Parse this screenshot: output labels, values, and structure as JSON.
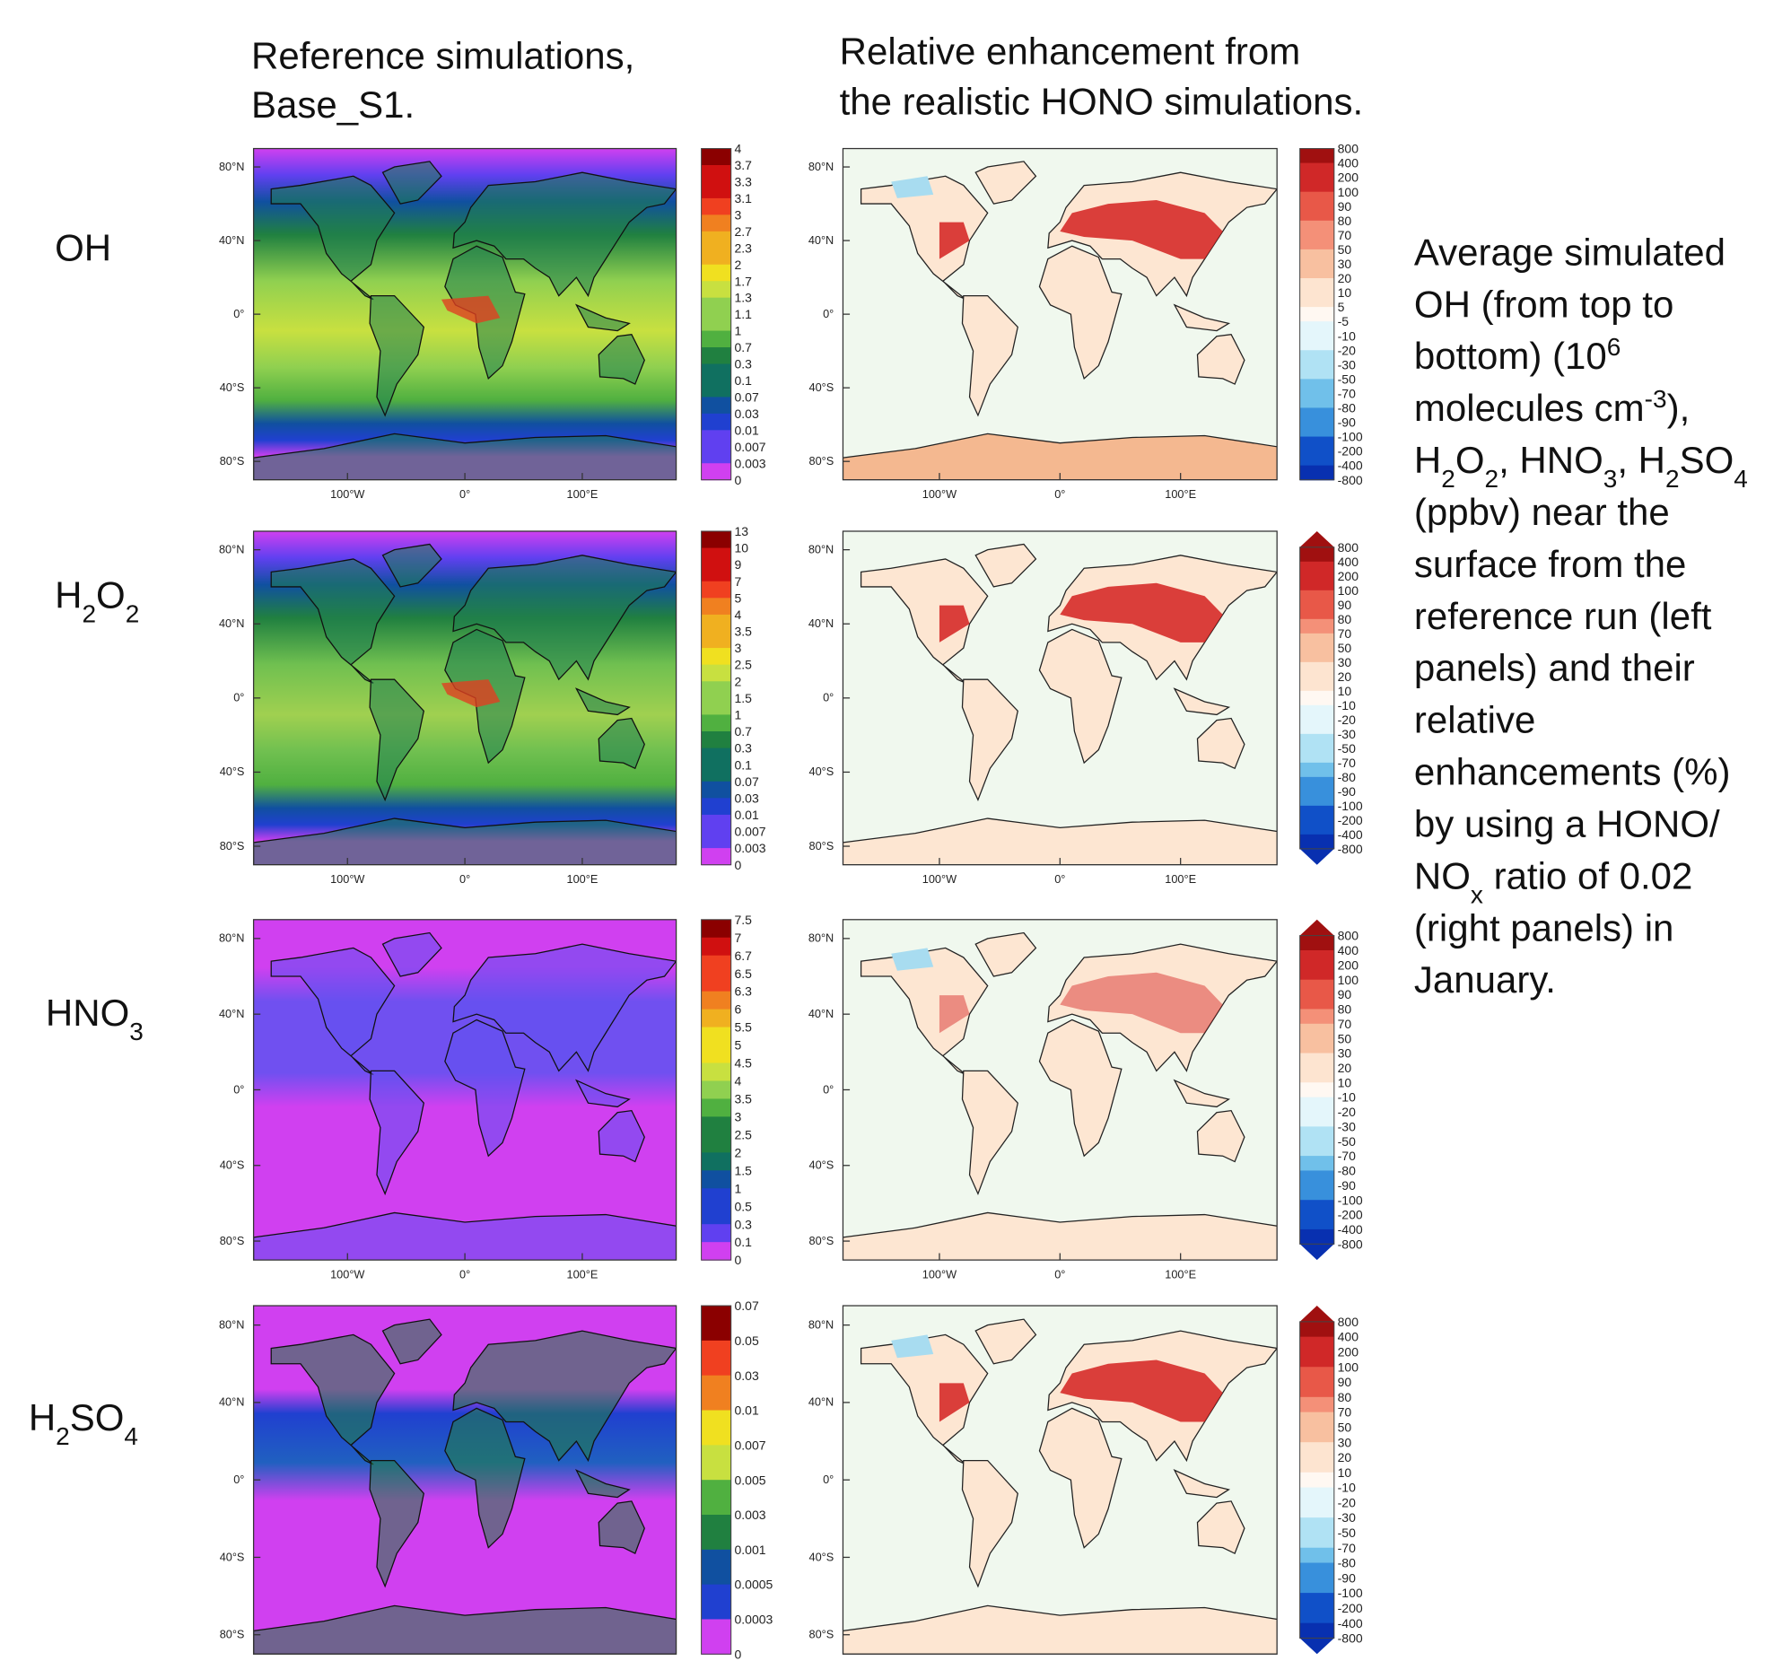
{
  "header": {
    "left": [
      "Reference simulations,",
      "Base_S1."
    ],
    "right": [
      "Relative enhancement from",
      "the realistic HONO simulations."
    ]
  },
  "rows": [
    {
      "label": [
        "OH"
      ],
      "left_colorbar": [
        "4",
        "3.7",
        "3.3",
        "3.1",
        "3",
        "2.7",
        "2.3",
        "2",
        "1.7",
        "1.3",
        "1.1",
        "1",
        "0.7",
        "0.3",
        "0.1",
        "0.07",
        "0.03",
        "0.01",
        "0.007",
        "0.003",
        "0"
      ],
      "right_colorbar": [
        "800",
        "400",
        "200",
        "100",
        "90",
        "80",
        "70",
        "50",
        "30",
        "20",
        "10",
        "5",
        "-5",
        "-10",
        "-20",
        "-30",
        "-50",
        "-70",
        "-80",
        "-90",
        "-100",
        "-200",
        "-400",
        "-800"
      ]
    },
    {
      "label": [
        "H",
        "2",
        "O",
        "2"
      ],
      "left_colorbar": [
        "13",
        "10",
        "9",
        "7",
        "5",
        "4",
        "3.5",
        "3",
        "2.5",
        "2",
        "1.5",
        "1",
        "0.7",
        "0.3",
        "0.1",
        "0.07",
        "0.03",
        "0.01",
        "0.007",
        "0.003",
        "0"
      ],
      "right_colorbar": [
        "800",
        "400",
        "200",
        "100",
        "90",
        "80",
        "70",
        "50",
        "30",
        "20",
        "10",
        "-10",
        "-20",
        "-30",
        "-50",
        "-70",
        "-80",
        "-90",
        "-100",
        "-200",
        "-400",
        "-800"
      ]
    },
    {
      "label": [
        "HNO",
        "3"
      ],
      "left_colorbar": [
        "7.5",
        "7",
        "6.7",
        "6.5",
        "6.3",
        "6",
        "5.5",
        "5",
        "4.5",
        "4",
        "3.5",
        "3",
        "2.5",
        "2",
        "1.5",
        "1",
        "0.5",
        "0.3",
        "0.1",
        "0"
      ],
      "right_colorbar": [
        "800",
        "400",
        "200",
        "100",
        "90",
        "80",
        "70",
        "50",
        "30",
        "20",
        "10",
        "-10",
        "-20",
        "-30",
        "-50",
        "-70",
        "-80",
        "-90",
        "-100",
        "-200",
        "-400",
        "-800"
      ]
    },
    {
      "label": [
        "H",
        "2",
        "SO",
        "4"
      ],
      "left_colorbar": [
        "0.07",
        "0.05",
        "0.03",
        "0.01",
        "0.007",
        "0.005",
        "0.003",
        "0.001",
        "0.0005",
        "0.0003",
        "0"
      ],
      "right_colorbar": [
        "800",
        "400",
        "200",
        "100",
        "90",
        "80",
        "70",
        "50",
        "30",
        "20",
        "10",
        "-10",
        "-20",
        "-30",
        "-50",
        "-70",
        "-80",
        "-90",
        "-100",
        "-200",
        "-400",
        "-800"
      ]
    }
  ],
  "lat_labels": [
    "80°N",
    "40°N",
    "0°",
    "40°S",
    "80°S"
  ],
  "lon_labels": [
    "100°W",
    "0°",
    "100°E"
  ],
  "caption": [
    [
      "Average simulated"
    ],
    [
      "OH (from top to"
    ],
    [
      "bottom) (10",
      "6"
    ],
    [
      "molecules cm",
      "-3",
      "),"
    ],
    [
      "H",
      "2",
      "O",
      "2",
      ", HNO",
      "3",
      ", H",
      "2",
      "SO",
      "4"
    ],
    [
      "(ppbv) near the"
    ],
    [
      "surface from the"
    ],
    [
      "reference run (left"
    ],
    [
      "panels) and their"
    ],
    [
      "relative"
    ],
    [
      "enhancements (%)"
    ],
    [
      "by using a HONO/"
    ],
    [
      "NO",
      "x",
      " ratio of 0.02"
    ],
    [
      "(right panels) in"
    ],
    [
      "January."
    ]
  ]
}
